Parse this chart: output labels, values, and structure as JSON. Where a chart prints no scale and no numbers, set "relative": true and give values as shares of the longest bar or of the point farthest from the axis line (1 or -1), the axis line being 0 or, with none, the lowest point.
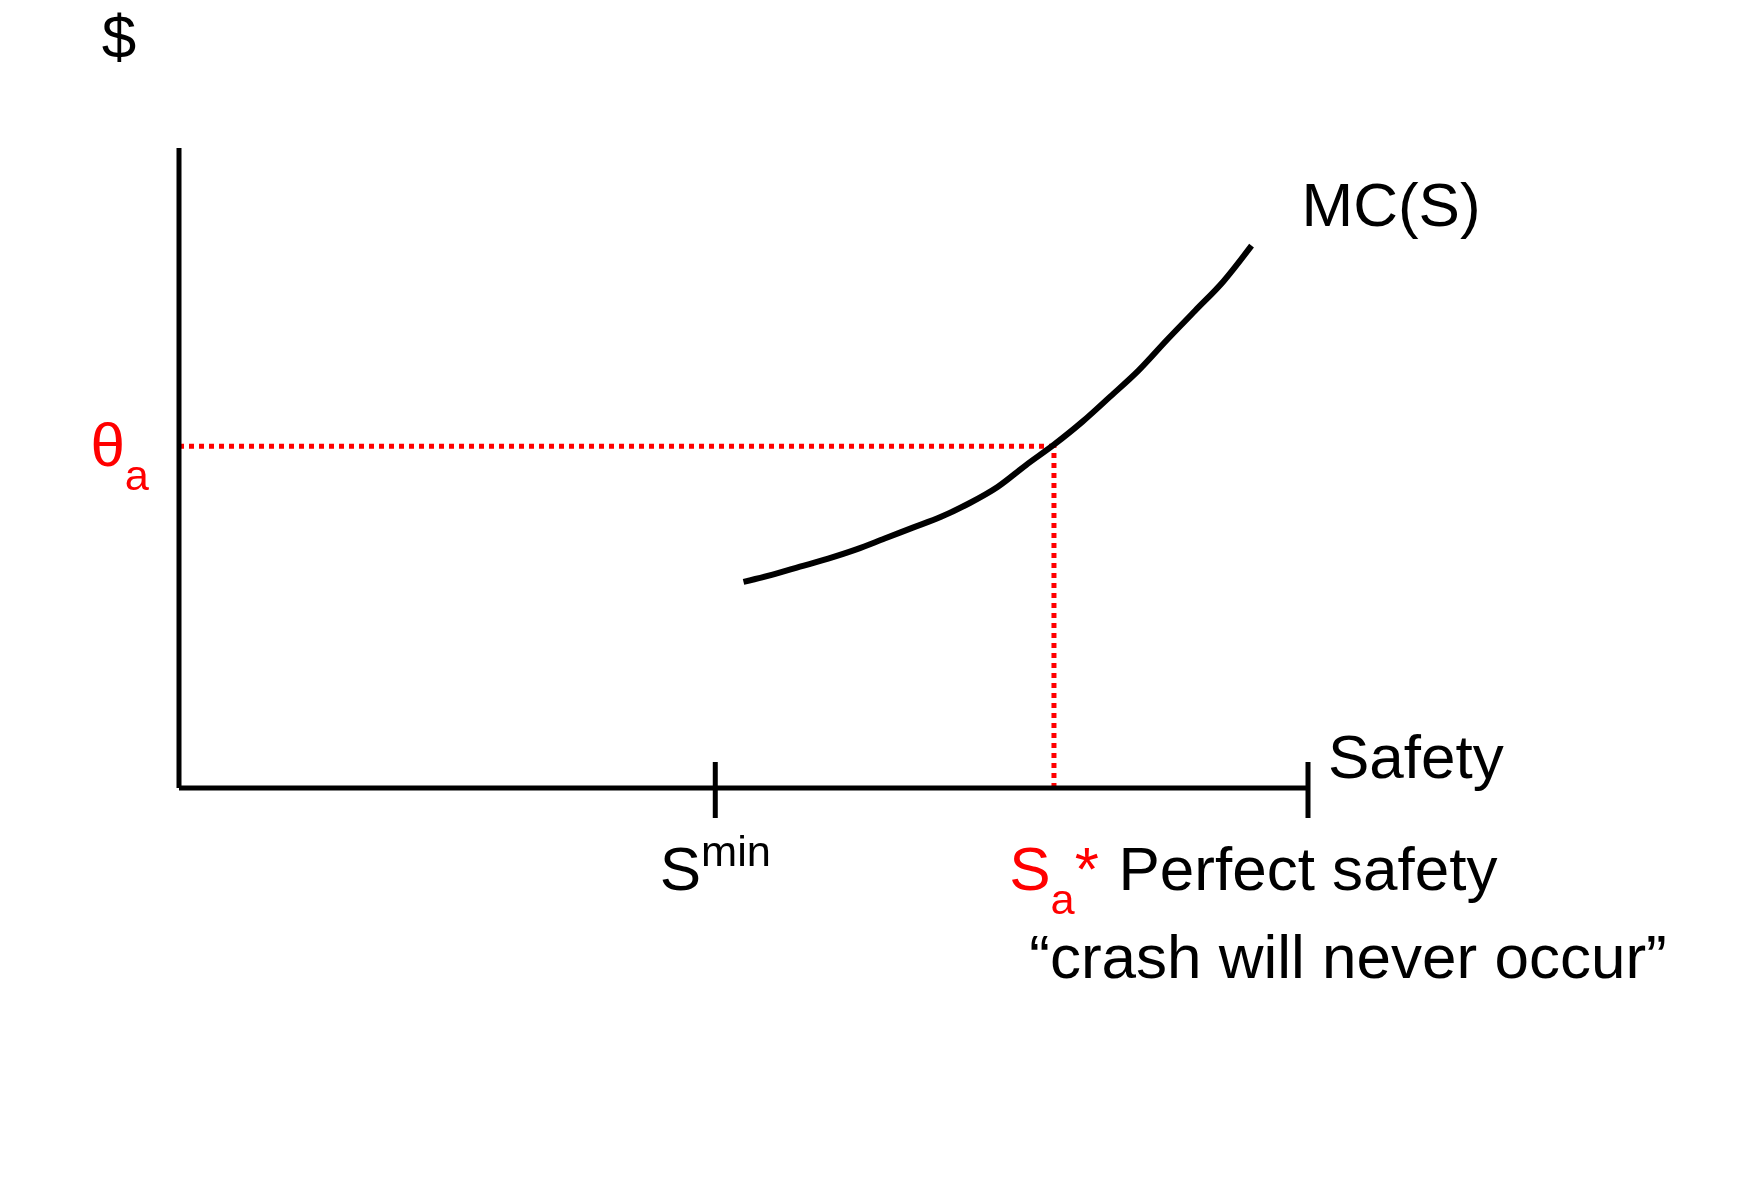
{
  "chart_data": {
    "type": "line",
    "relative": true,
    "ylabel": "$",
    "xlabel": "Safety",
    "categories": [
      null,
      null,
      null,
      null,
      null,
      null,
      null,
      null,
      null,
      null,
      null,
      null,
      null,
      null,
      null,
      null,
      null,
      null,
      null,
      "S$^{min}$",
      null,
      null,
      null,
      null,
      null,
      null,
      null,
      null,
      null,
      null,
      null,
      "S$_{a}$*",
      null,
      null,
      null,
      null,
      null,
      null,
      null,
      null,
      "Perfect safety"
    ],
    "series": [
      {
        "name": "MC(S)",
        "color": "#000000",
        "values": [
          null,
          null,
          null,
          null,
          null,
          null,
          null,
          null,
          null,
          null,
          null,
          null,
          null,
          null,
          null,
          null,
          null,
          null,
          null,
          null,
          0.38,
          0.393,
          0.408,
          0.423,
          0.44,
          0.46,
          0.48,
          0.5,
          0.525,
          0.555,
          0.595,
          0.633,
          0.675,
          0.722,
          0.77,
          0.826,
          0.88,
          0.934,
          1,
          null,
          null
        ]
      }
    ],
    "ref_lines": [
      {
        "axis": "y",
        "value": 0.63,
        "label": "θ$_{a}$",
        "color": "#ff0000",
        "line_style": "dotted"
      },
      {
        "axis": "x",
        "value": "S$_{a}$*",
        "color": "#ff0000",
        "line_style": "dotted"
      }
    ],
    "annotations": [
      "“crash will never occur”"
    ],
    "grid": false,
    "legend": false,
    "marker": "none",
    "line_style": "solid"
  }
}
